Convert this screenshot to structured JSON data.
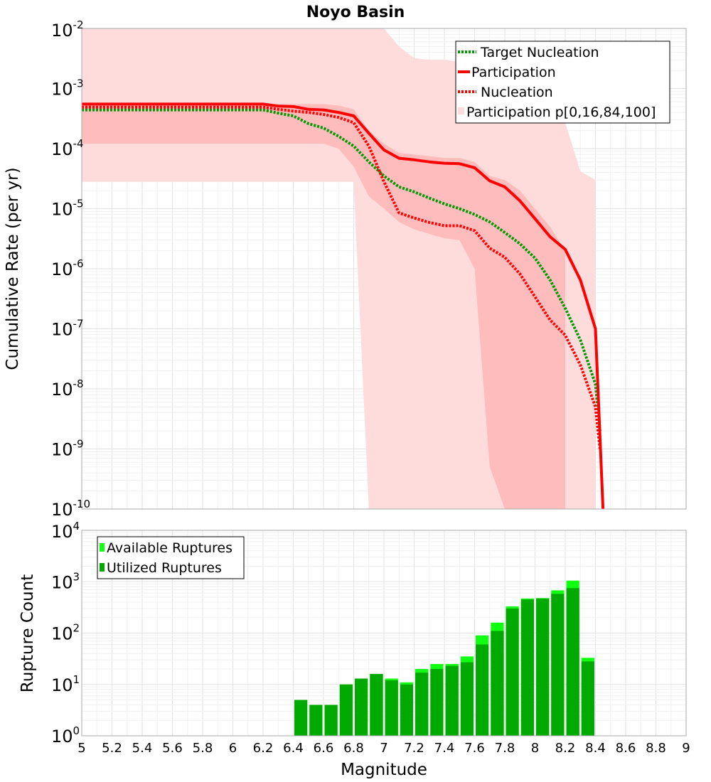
{
  "colors": {
    "red": "#ff0000",
    "green": "#009900",
    "band_outer": "#ffdcdc",
    "band_inner": "#ffbcbc",
    "bar_available": "#11ff11",
    "bar_utilized": "#00aa00",
    "grid": "#e6e6e6",
    "frame": "#aaaaaa"
  },
  "chart_data": [
    {
      "type": "line",
      "title": "Noyo Basin",
      "xlabel": "",
      "ylabel": "Cumulative Rate (per yr)",
      "xlim": [
        5,
        9
      ],
      "ylim": [
        1e-10,
        0.01
      ],
      "yscale": "log",
      "y_tick_labels": [
        {
          "base": "10",
          "exp": "-10",
          "value": 1e-10
        },
        {
          "base": "10",
          "exp": "-9",
          "value": 1e-09
        },
        {
          "base": "10",
          "exp": "-8",
          "value": 1e-08
        },
        {
          "base": "10",
          "exp": "-7",
          "value": 1e-07
        },
        {
          "base": "10",
          "exp": "-6",
          "value": 1e-06
        },
        {
          "base": "10",
          "exp": "-5",
          "value": 1e-05
        },
        {
          "base": "10",
          "exp": "-4",
          "value": 0.0001
        },
        {
          "base": "10",
          "exp": "-3",
          "value": 0.001
        },
        {
          "base": "10",
          "exp": "-2",
          "value": 0.01
        }
      ],
      "legend": [
        {
          "label": "Target Nucleation",
          "style": "dotted",
          "color": "#009900"
        },
        {
          "label": "Participation",
          "style": "solid",
          "color": "#ff0000"
        },
        {
          "label": "Nucleation",
          "style": "dotted",
          "color": "#ff0000"
        },
        {
          "label": "Participation p[0,16,84,100]",
          "style": "band",
          "color": "#ffdcdc"
        }
      ],
      "legend_position": "top-right",
      "series": [
        {
          "name": "Target Nucleation",
          "x": [
            5.0,
            6.2,
            6.3,
            6.4,
            6.5,
            6.6,
            6.7,
            6.8,
            6.9,
            7.0,
            7.1,
            7.2,
            7.3,
            7.4,
            7.5,
            7.6,
            7.7,
            7.8,
            7.9,
            8.0,
            8.1,
            8.2,
            8.3,
            8.4,
            8.43
          ],
          "y": [
            0.00044,
            0.00044,
            0.00039,
            0.00035,
            0.00026,
            0.00022,
            0.00016,
            0.00011,
            6e-05,
            3.5e-05,
            2.3e-05,
            1.9e-05,
            1.5e-05,
            1.2e-05,
            1e-05,
            8e-06,
            6e-06,
            4e-06,
            2.6e-06,
            1.5e-06,
            6.5e-07,
            2.2e-07,
            6.5e-08,
            1.2e-08,
            2e-09
          ]
        },
        {
          "name": "Participation",
          "x": [
            5.0,
            6.2,
            6.3,
            6.4,
            6.5,
            6.6,
            6.7,
            6.8,
            6.9,
            7.0,
            7.1,
            7.2,
            7.3,
            7.4,
            7.5,
            7.6,
            7.7,
            7.8,
            7.9,
            8.0,
            8.1,
            8.2,
            8.3,
            8.4,
            8.45
          ],
          "y": [
            0.00055,
            0.00055,
            0.00051,
            0.0005,
            0.00045,
            0.00044,
            0.0004,
            0.00035,
            0.00018,
            9.5e-05,
            6.9e-05,
            6.5e-05,
            6e-05,
            5.7e-05,
            5.6e-05,
            4.8e-05,
            2.9e-05,
            2.3e-05,
            1.35e-05,
            6.8e-06,
            3.4e-06,
            2.1e-06,
            6.5e-07,
            1e-07,
            1e-10
          ]
        },
        {
          "name": "Nucleation",
          "x": [
            5.0,
            6.2,
            6.3,
            6.4,
            6.5,
            6.6,
            6.7,
            6.8,
            6.9,
            7.0,
            7.1,
            7.2,
            7.3,
            7.4,
            7.5,
            7.6,
            7.7,
            7.8,
            7.9,
            8.0,
            8.1,
            8.2,
            8.3,
            8.4,
            8.43
          ],
          "y": [
            0.00049,
            0.00049,
            0.00045,
            0.00042,
            0.0004,
            0.00037,
            0.00033,
            0.00027,
            0.00011,
            2.8e-05,
            8.5e-06,
            7e-06,
            5.9e-06,
            5.2e-06,
            5.2e-06,
            4.3e-06,
            2.2e-06,
            1.55e-06,
            8.2e-07,
            3.4e-07,
            1.4e-07,
            7.8e-08,
            2.5e-08,
            5e-09,
            1e-09
          ]
        }
      ],
      "bands": [
        {
          "name": "Participation p[0,100]",
          "x": [
            5.0,
            6.8,
            6.8,
            6.9,
            7.0,
            7.1,
            7.2,
            7.3,
            7.4,
            7.5,
            7.6,
            7.7,
            7.8,
            7.9,
            8.0,
            8.1,
            8.2,
            8.3,
            8.4
          ],
          "lower": [
            2.8e-05,
            2.8e-05,
            2.4e-05,
            1e-10,
            1e-10,
            1e-10,
            1e-10,
            1e-10,
            1e-10,
            1e-10,
            1e-10,
            1e-10,
            1e-10,
            1e-10,
            1e-10,
            1e-10,
            1e-10,
            1e-10,
            1e-10
          ],
          "upper": [
            0.01,
            0.01,
            0.01,
            0.01,
            0.01,
            0.005,
            0.0032,
            0.003,
            0.003,
            0.0028,
            0.0021,
            0.0018,
            0.0012,
            0.00075,
            0.00048,
            0.00033,
            0.00027,
            4.2e-05,
            3e-05
          ]
        },
        {
          "name": "Participation p[16,84]",
          "x": [
            5.0,
            6.6,
            6.7,
            6.8,
            6.9,
            7.0,
            7.1,
            7.2,
            7.3,
            7.4,
            7.5,
            7.6,
            7.7,
            7.8,
            7.9,
            8.0,
            8.1,
            8.2
          ],
          "lower": [
            0.00012,
            0.00012,
            0.0001,
            5e-05,
            1.6e-05,
            1e-05,
            6e-06,
            4.5e-06,
            3.8e-06,
            3.2e-06,
            3e-06,
            1e-06,
            5e-10,
            1e-10,
            1e-10,
            1e-10,
            1e-10,
            1e-10
          ],
          "upper": [
            0.00055,
            0.00055,
            0.00052,
            0.00045,
            0.0002,
            0.00012,
            8.5e-05,
            8e-05,
            7.5e-05,
            7e-05,
            7e-05,
            6e-05,
            3.5e-05,
            3e-05,
            2e-05,
            1e-05,
            5e-06,
            2e-06
          ]
        }
      ]
    },
    {
      "type": "bar",
      "title": "",
      "xlabel": "Magnitude",
      "ylabel": "Rupture Count",
      "xlim": [
        5,
        9
      ],
      "ylim": [
        1,
        10000
      ],
      "yscale": "log",
      "x_ticks": [
        "5",
        "5.2",
        "5.4",
        "5.6",
        "5.8",
        "6",
        "6.2",
        "6.4",
        "6.6",
        "6.8",
        "7",
        "7.2",
        "7.4",
        "7.6",
        "7.8",
        "8",
        "8.2",
        "8.4",
        "8.6",
        "8.8",
        "9"
      ],
      "y_tick_labels": [
        {
          "base": "10",
          "exp": "0",
          "value": 1
        },
        {
          "base": "10",
          "exp": "1",
          "value": 10
        },
        {
          "base": "10",
          "exp": "2",
          "value": 100
        },
        {
          "base": "10",
          "exp": "3",
          "value": 1000
        },
        {
          "base": "10",
          "exp": "4",
          "value": 10000
        }
      ],
      "legend": [
        {
          "label": "Available Ruptures",
          "color": "#11ff11"
        },
        {
          "label": "Utilized Ruptures",
          "color": "#00aa00"
        }
      ],
      "legend_position": "top-left",
      "bin_width": 0.1,
      "bin_centers": [
        6.45,
        6.55,
        6.65,
        6.75,
        6.85,
        6.95,
        7.05,
        7.15,
        7.25,
        7.35,
        7.45,
        7.55,
        7.65,
        7.75,
        7.85,
        7.95,
        8.05,
        8.15,
        8.25,
        8.35
      ],
      "series": [
        {
          "name": "Available Ruptures",
          "values": [
            5,
            4,
            4,
            10,
            13,
            16,
            13,
            11,
            20,
            25,
            25,
            35,
            90,
            160,
            330,
            470,
            480,
            680,
            1050,
            33
          ]
        },
        {
          "name": "Utilized Ruptures",
          "values": [
            5,
            4,
            4,
            10,
            13,
            16,
            12,
            10,
            17,
            20,
            23,
            27,
            60,
            110,
            300,
            450,
            470,
            580,
            750,
            28
          ]
        }
      ]
    }
  ]
}
